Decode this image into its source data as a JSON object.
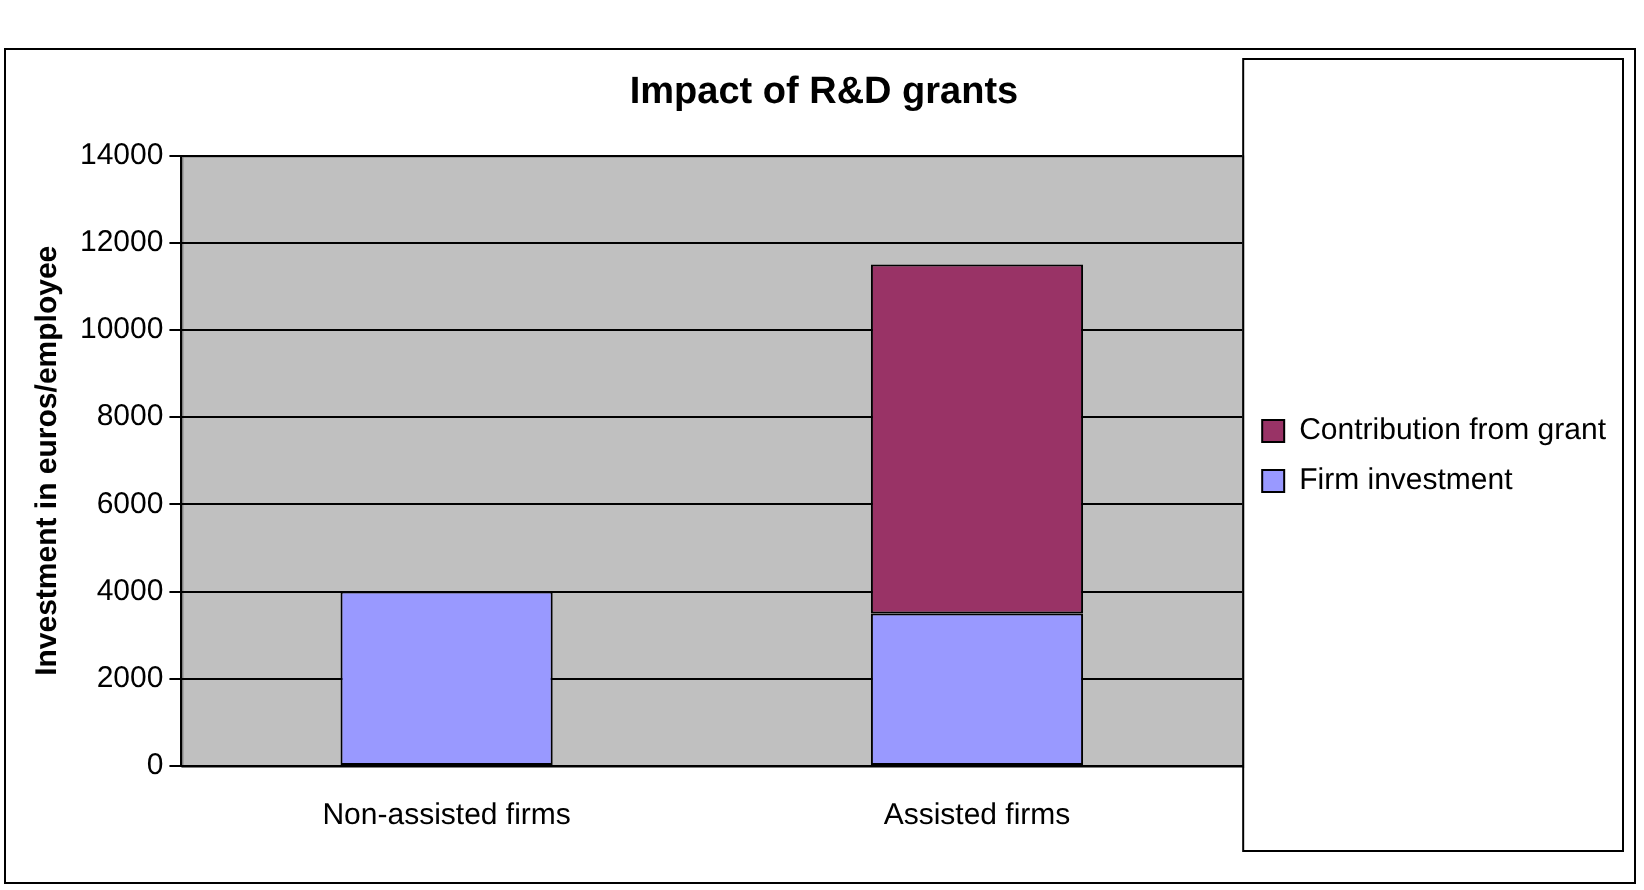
{
  "chart_data": {
    "type": "bar",
    "title": "Impact of R&D grants",
    "ylabel": "Investment in euros/employee",
    "categories": [
      "Non-assisted firms",
      "Assisted firms"
    ],
    "stacked": true,
    "series": [
      {
        "name": "Firm investment",
        "color": "#9999ff",
        "values": [
          4000,
          3500
        ]
      },
      {
        "name": "Contribution from grant",
        "color": "#993366",
        "values": [
          null,
          8000
        ]
      }
    ],
    "ylim": [
      0,
      14000
    ],
    "yticks": [
      0,
      2000,
      4000,
      6000,
      8000,
      10000,
      12000,
      14000
    ],
    "grid": "y",
    "legend": "right"
  }
}
